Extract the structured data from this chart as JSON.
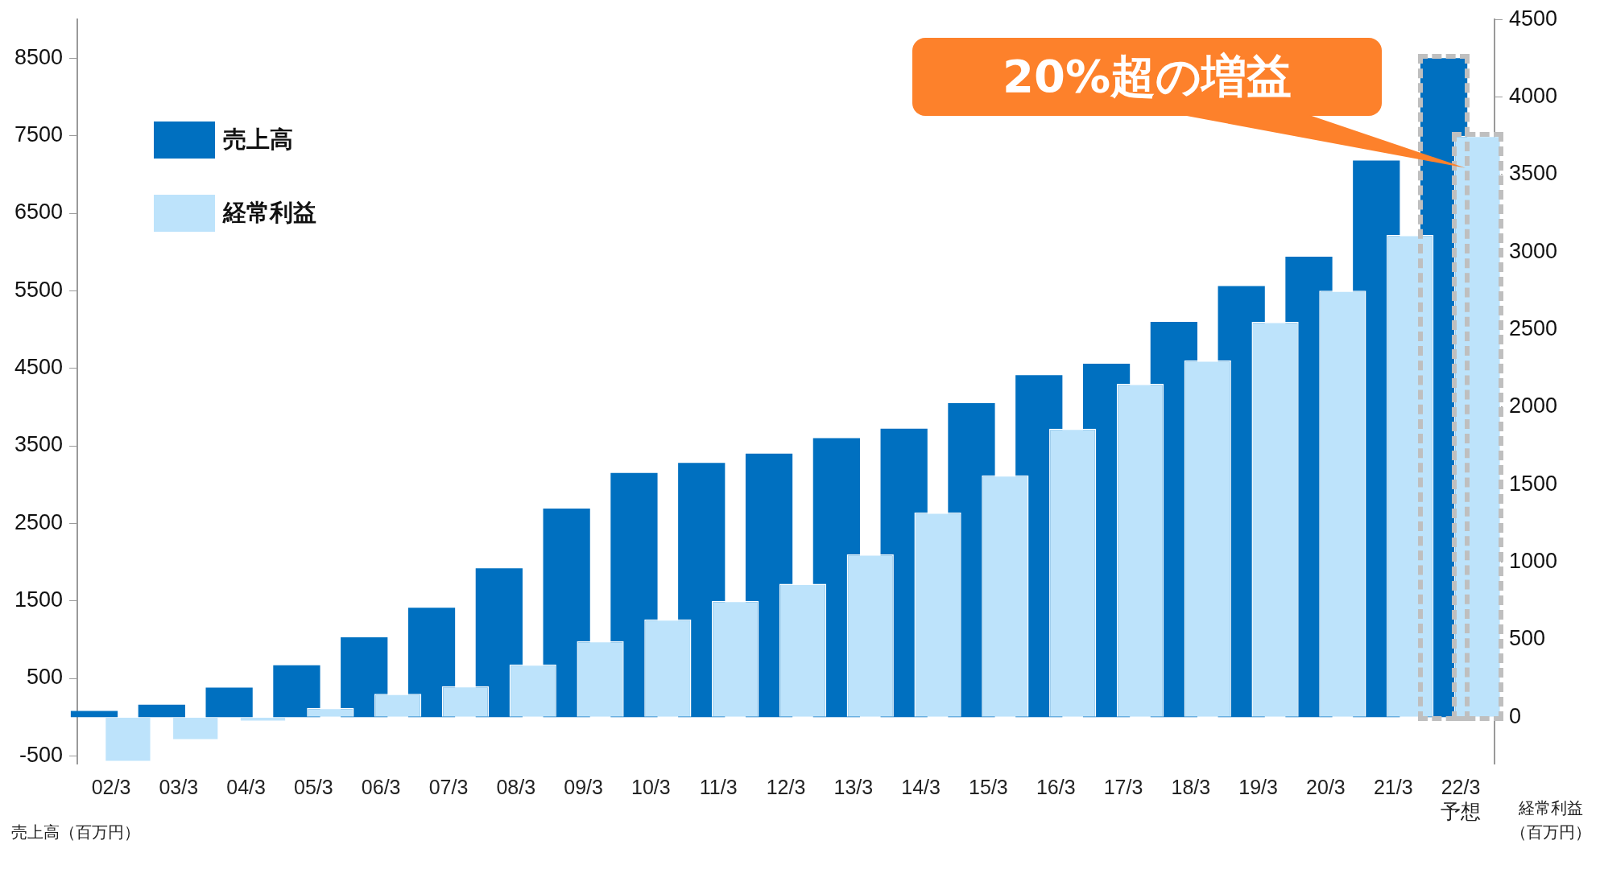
{
  "chart_data": {
    "type": "bar",
    "categories": [
      "02/3",
      "03/3",
      "04/3",
      "05/3",
      "06/3",
      "07/3",
      "08/3",
      "09/3",
      "10/3",
      "11/3",
      "12/3",
      "13/3",
      "14/3",
      "15/3",
      "16/3",
      "17/3",
      "18/3",
      "19/3",
      "20/3",
      "21/3",
      "22/3\n予想"
    ],
    "series": [
      {
        "name": "売上高",
        "color": "#0070c0",
        "values": [
          80,
          160,
          380,
          670,
          1030,
          1410,
          1920,
          2690,
          3150,
          3280,
          3400,
          3600,
          3720,
          4050,
          4410,
          4560,
          5100,
          5560,
          5940,
          7180,
          8500
        ]
      },
      {
        "name": "経常利益",
        "color": "#bde3fb",
        "axis": "y2",
        "values": [
          -290,
          -150,
          -30,
          60,
          150,
          200,
          340,
          490,
          630,
          750,
          860,
          1050,
          1320,
          1560,
          1860,
          2150,
          2300,
          2550,
          2750,
          3110,
          3750
        ]
      }
    ],
    "ylim": [
      -600,
      9000
    ],
    "yticks": [
      -500,
      500,
      1500,
      2500,
      3500,
      4500,
      5500,
      6500,
      7500,
      8500
    ],
    "y2lim": [
      -300,
      4500
    ],
    "y2ticks": [
      0,
      500,
      1000,
      1500,
      2000,
      2500,
      3000,
      3500,
      4000,
      4500
    ],
    "ylabel": "売上高（百万円）",
    "y2label": "経常利益（百万円）",
    "legend": "top left",
    "grid": false,
    "annotations": [
      "20%超の増益"
    ]
  }
}
